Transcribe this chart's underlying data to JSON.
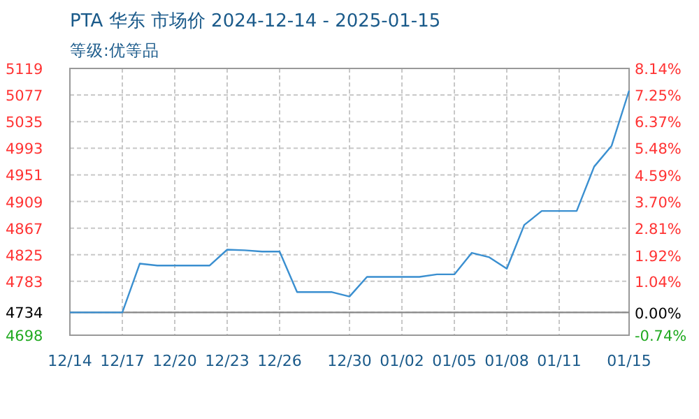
{
  "chart_data": {
    "type": "line",
    "title": "PTA 华东 市场价 2024-12-14 - 2025-01-15",
    "subtitle": "等级:优等品",
    "x": [
      "2024-12-14",
      "2024-12-15",
      "2024-12-16",
      "2024-12-17",
      "2024-12-18",
      "2024-12-19",
      "2024-12-20",
      "2024-12-21",
      "2024-12-22",
      "2024-12-23",
      "2024-12-24",
      "2024-12-25",
      "2024-12-26",
      "2024-12-27",
      "2024-12-28",
      "2024-12-29",
      "2024-12-30",
      "2024-12-31",
      "2025-01-01",
      "2025-01-02",
      "2025-01-03",
      "2025-01-04",
      "2025-01-05",
      "2025-01-06",
      "2025-01-07",
      "2025-01-08",
      "2025-01-09",
      "2025-01-10",
      "2025-01-11",
      "2025-01-12",
      "2025-01-13",
      "2025-01-14",
      "2025-01-15"
    ],
    "series": [
      {
        "color": "#3a8fd0",
        "values": [
          4734,
          4734,
          4734,
          4734,
          4811,
          4808,
          4808,
          4808,
          4808,
          4833,
          4832,
          4830,
          4830,
          4766,
          4766,
          4766,
          4759,
          4790,
          4790,
          4790,
          4790,
          4794,
          4794,
          4828,
          4821,
          4803,
          4872,
          4894,
          4894,
          4894,
          4964,
          4997,
          5084
        ]
      }
    ],
    "xlim": [
      "2024-12-14",
      "2025-01-15"
    ],
    "xticks": [
      {
        "value": "2024-12-14",
        "label": "12/14"
      },
      {
        "value": "2024-12-17",
        "label": "12/17"
      },
      {
        "value": "2024-12-20",
        "label": "12/20"
      },
      {
        "value": "2024-12-23",
        "label": "12/23"
      },
      {
        "value": "2024-12-26",
        "label": "12/26"
      },
      {
        "value": "2024-12-30",
        "label": "12/30"
      },
      {
        "value": "2025-01-02",
        "label": "01/02"
      },
      {
        "value": "2025-01-05",
        "label": "01/05"
      },
      {
        "value": "2025-01-08",
        "label": "01/08"
      },
      {
        "value": "2025-01-11",
        "label": "01/11"
      },
      {
        "value": "2025-01-15",
        "label": "01/15"
      }
    ],
    "ylim": [
      4698,
      5119
    ],
    "yticks": [
      4698,
      4734,
      4783,
      4825,
      4867,
      4909,
      4951,
      4993,
      5035,
      5077,
      5119
    ],
    "y2lim": [
      -0.74,
      8.14
    ],
    "y2ticks": [
      {
        "value": -0.74,
        "label": "-0.74%"
      },
      {
        "value": 0,
        "label": "0.00%"
      },
      {
        "value": 1.04,
        "label": "1.04%"
      },
      {
        "value": 1.92,
        "label": "1.92%"
      },
      {
        "value": 2.81,
        "label": "2.81%"
      },
      {
        "value": 3.7,
        "label": "3.70%"
      },
      {
        "value": 4.59,
        "label": "4.59%"
      },
      {
        "value": 5.48,
        "label": "5.48%"
      },
      {
        "value": 6.37,
        "label": "6.37%"
      },
      {
        "value": 7.25,
        "label": "7.25%"
      },
      {
        "value": 8.14,
        "label": "8.14%"
      }
    ],
    "ref_lines": [
      {
        "axis": "y",
        "value": 4734,
        "color": "#888888"
      }
    ],
    "grid": true,
    "marker": "none",
    "line_style": "solid"
  }
}
